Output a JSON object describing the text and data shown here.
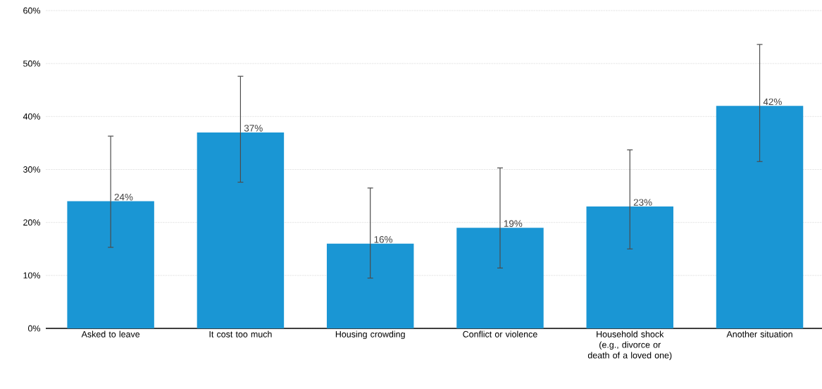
{
  "chart_data": {
    "type": "bar",
    "categories": [
      "Asked to leave",
      "It cost too much",
      "Housing crowding",
      "Conflict or violence",
      "Household shock (e.g., divorce or death of a loved one)",
      "Another situation"
    ],
    "values": [
      24,
      37,
      16,
      19,
      23,
      42
    ],
    "value_labels": [
      "24%",
      "37%",
      "16%",
      "19%",
      "23%",
      "42%"
    ],
    "errors": [
      [
        15.3,
        36.3
      ],
      [
        27.6,
        47.6
      ],
      [
        9.5,
        26.5
      ],
      [
        11.4,
        30.3
      ],
      [
        15.0,
        33.7
      ],
      [
        31.5,
        53.6
      ]
    ],
    "color": "#1a96d4",
    "ylim": [
      0,
      60
    ],
    "yticks": [
      {
        "value": 0,
        "label": "0%"
      },
      {
        "value": 10,
        "label": "10%"
      },
      {
        "value": 20,
        "label": "20%"
      },
      {
        "value": 30,
        "label": "30%"
      },
      {
        "value": 40,
        "label": "40%"
      },
      {
        "value": 50,
        "label": "50%"
      },
      {
        "value": 60,
        "label": "60%"
      }
    ],
    "grid": "y"
  }
}
